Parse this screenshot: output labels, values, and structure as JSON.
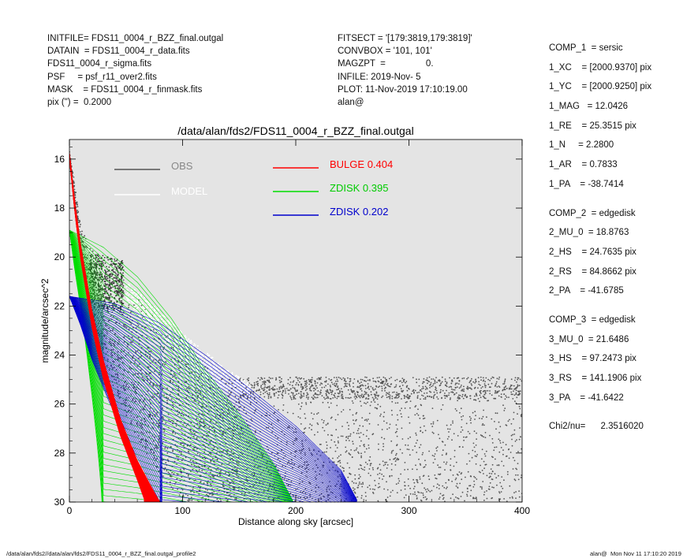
{
  "header_left": [
    {
      "k": "INITFILE= ",
      "v": "FDS11_0004_r_BZZ_final.outgal"
    },
    {
      "k": "DATAIN  = ",
      "v": "FDS11_0004_r_data.fits"
    },
    {
      "k": "",
      "v": "FDS11_0004_r_sigma.fits"
    },
    {
      "k": "PSF     = ",
      "v": "psf_r11_over2.fits"
    },
    {
      "k": "MASK    = ",
      "v": "FDS11_0004_r_finmask.fits"
    },
    {
      "k": "pix (\") =  ",
      "v": "0.2000"
    }
  ],
  "header_mid": [
    "FITSECT = '[179:3819,179:3819]'",
    "CONVBOX = '101, 101'",
    "MAGZPT  =                0.",
    "INFILE: 2019-Nov- 5",
    "PLOT: 11-Nov-2019 17:10:19.00",
    "alan@"
  ],
  "params": {
    "comp1": [
      "COMP_1  = sersic",
      "1_XC    = [2000.9370] pix",
      "1_YC    = [2000.9250] pix",
      "1_MAG   = 12.0426",
      "1_RE    = 25.3515 pix",
      "1_N     = 2.2800",
      "1_AR    = 0.7833",
      "1_PA    = -38.7414"
    ],
    "comp2": [
      "COMP_2  = edgedisk",
      "2_MU_0  = 18.8763",
      "2_HS    = 24.7635 pix",
      "2_RS    = 84.8662 pix",
      "2_PA    = -41.6785"
    ],
    "comp3": [
      "COMP_3  = edgedisk",
      "3_MU_0  = 21.6486",
      "3_HS    = 97.2473 pix",
      "3_RS    = 141.1906 pix",
      "3_PA    = -41.6422"
    ],
    "chi2": "Chi2/nu=      2.3516020"
  },
  "footer": {
    "left": "/data/alan/fds2//data/alan/fds2/FDS11_0004_r_BZZ_final.outgal_profile2",
    "right": "alan@  Mon Nov 11 17:10:20 2019"
  },
  "colors": {
    "background": "#e4e4e4",
    "obs": "#555555",
    "model": "#ffffff",
    "bulge": "#ff0000",
    "zdisk1": "#00dd00",
    "zdisk2": "#0000cc"
  },
  "chart_data": {
    "type": "scatter",
    "title": "/data/alan/fds2/FDS11_0004_r_BZZ_final.outgal",
    "xlabel": "Distance along sky [arcsec]",
    "ylabel": "magnitude/arcsec^2",
    "xlim": [
      0,
      400
    ],
    "ylim": [
      30,
      15.2
    ],
    "y_inverted": true,
    "xticks": [
      0,
      100,
      200,
      300,
      400
    ],
    "yticks": [
      16,
      18,
      20,
      22,
      24,
      26,
      28,
      30
    ],
    "legend": [
      {
        "name": "OBS",
        "value": ""
      },
      {
        "name": "MODEL",
        "value": ""
      },
      {
        "name": "BULGE",
        "value": "0.404"
      },
      {
        "name": "ZDISK",
        "value": "0.395"
      },
      {
        "name": "ZDISK",
        "value": "0.202"
      }
    ],
    "series": [
      {
        "name": "BULGE",
        "color": "#ff0000",
        "upper": [
          [
            0,
            15.7
          ],
          [
            5,
            17.8
          ],
          [
            10,
            19.5
          ],
          [
            20,
            22.2
          ],
          [
            30,
            24.2
          ],
          [
            45,
            26.6
          ],
          [
            60,
            28.3
          ],
          [
            75,
            29.6
          ],
          [
            80,
            30
          ]
        ],
        "lower": [
          [
            0,
            16.0
          ],
          [
            5,
            18.3
          ],
          [
            10,
            20.1
          ],
          [
            20,
            22.9
          ],
          [
            30,
            25.0
          ],
          [
            45,
            27.3
          ],
          [
            60,
            29.1
          ],
          [
            67,
            30
          ]
        ]
      },
      {
        "name": "ZDISK",
        "color": "#00dd00",
        "upper": [
          [
            0,
            18.9
          ],
          [
            30,
            19.6
          ],
          [
            60,
            20.8
          ],
          [
            90,
            22.5
          ],
          [
            120,
            24.6
          ],
          [
            150,
            26.4
          ],
          [
            180,
            28.4
          ],
          [
            198,
            30
          ]
        ],
        "lower": [
          [
            0,
            18.9
          ],
          [
            5,
            20.6
          ],
          [
            10,
            22.1
          ],
          [
            15,
            23.8
          ],
          [
            20,
            25.7
          ],
          [
            25,
            27.8
          ],
          [
            29,
            30
          ]
        ]
      },
      {
        "name": "ZDISK",
        "color": "#0000cc",
        "upper": [
          [
            0,
            21.6
          ],
          [
            40,
            21.9
          ],
          [
            80,
            22.7
          ],
          [
            120,
            24.0
          ],
          [
            160,
            25.4
          ],
          [
            200,
            26.9
          ],
          [
            240,
            28.7
          ],
          [
            255,
            30
          ]
        ],
        "lower": [
          [
            0,
            21.6
          ],
          [
            10,
            22.8
          ],
          [
            20,
            24.2
          ],
          [
            35,
            25.9
          ],
          [
            50,
            27.3
          ],
          [
            65,
            28.6
          ],
          [
            80,
            30
          ]
        ]
      }
    ],
    "obs_envelope": {
      "upper": [
        [
          0,
          15.6
        ],
        [
          10,
          18.5
        ],
        [
          20,
          19.7
        ],
        [
          30,
          20.1
        ],
        [
          40,
          20.2
        ],
        [
          50,
          21.0
        ],
        [
          70,
          22.0
        ],
        [
          100,
          23.4
        ],
        [
          130,
          24.6
        ],
        [
          150,
          25.1
        ],
        [
          200,
          25.3
        ],
        [
          300,
          25.2
        ],
        [
          400,
          25.1
        ]
      ],
      "lower": [
        [
          0,
          16.0
        ],
        [
          10,
          20.0
        ],
        [
          20,
          22.5
        ],
        [
          40,
          25.5
        ],
        [
          60,
          27.5
        ],
        [
          90,
          29.5
        ],
        [
          100,
          30
        ],
        [
          300,
          30
        ],
        [
          400,
          30
        ]
      ],
      "sky_band": [
        24.9,
        25.8
      ]
    },
    "model_band": {
      "upper": [
        [
          50,
          21.0
        ],
        [
          80,
          22.2
        ],
        [
          110,
          23.5
        ],
        [
          140,
          24.6
        ],
        [
          160,
          25.2
        ]
      ],
      "lower": [
        [
          50,
          21.8
        ],
        [
          80,
          23.2
        ],
        [
          110,
          24.6
        ],
        [
          130,
          25.3
        ],
        [
          160,
          25.7
        ]
      ]
    }
  }
}
